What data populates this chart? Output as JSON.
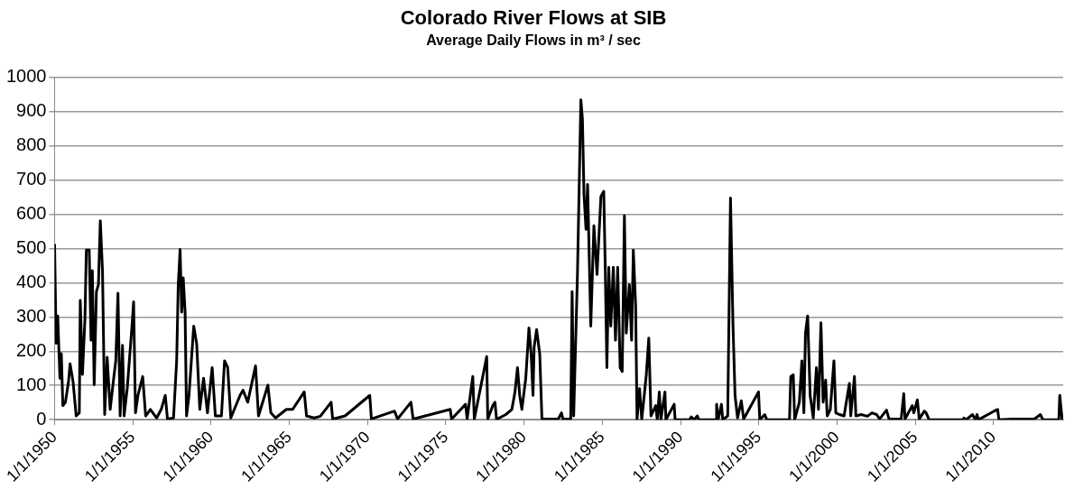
{
  "chart_data": {
    "type": "line",
    "title": "Colorado River Flows at SIB",
    "subtitle": "Average Daily Flows in m³ / sec",
    "xlim": [
      "1950-01-01",
      "2014-06-14"
    ],
    "xticks": [
      {
        "value": "1950-01-01",
        "label": "1/1/1950"
      },
      {
        "value": "1955-01-01",
        "label": "1/1/1955"
      },
      {
        "value": "1960-01-01",
        "label": "1/1/1960"
      },
      {
        "value": "1965-01-01",
        "label": "1/1/1965"
      },
      {
        "value": "1970-01-01",
        "label": "1/1/1970"
      },
      {
        "value": "1975-01-01",
        "label": "1/1/1975"
      },
      {
        "value": "1980-01-01",
        "label": "1/1/1980"
      },
      {
        "value": "1985-01-01",
        "label": "1/1/1985"
      },
      {
        "value": "1990-01-01",
        "label": "1/1/1990"
      },
      {
        "value": "1995-01-01",
        "label": "1/1/1995"
      },
      {
        "value": "2000-01-01",
        "label": "1/1/2000"
      },
      {
        "value": "2005-01-01",
        "label": "1/1/2005"
      },
      {
        "value": "2010-01-01",
        "label": "1/1/2010"
      }
    ],
    "ylim": [
      0,
      1000
    ],
    "yticks": [
      0,
      100,
      200,
      300,
      400,
      500,
      600,
      700,
      800,
      900,
      1000
    ],
    "grid": "y",
    "legend": false,
    "marker": "none",
    "line_style": "solid",
    "series": [
      {
        "color": "#000000",
        "x": [
          "1950-01-01",
          "1950-02-06",
          "1950-03-15",
          "1950-05-05",
          "1950-06-07",
          "1950-07-13",
          "1950-09-10",
          "1950-11-22",
          "1950-12-28",
          "1951-03-08",
          "1951-05-20",
          "1951-08-01",
          "1951-08-23",
          "1951-10-13",
          "1951-12-10",
          "1952-01-12",
          "1952-03-19",
          "1952-05-01",
          "1952-05-31",
          "1952-07-13",
          "1952-09-03",
          "1952-10-20",
          "1952-12-03",
          "1953-01-23",
          "1953-03-15",
          "1953-05-12",
          "1953-07-21",
          "1953-10-02",
          "1953-11-29",
          "1954-01-19",
          "1954-03-11",
          "1954-05-05",
          "1954-06-11",
          "1954-08-23",
          "1954-12-06",
          "1955-01-19",
          "1955-03-04",
          "1955-05-01",
          "1955-08-19",
          "1955-10-27",
          "1956-02-14",
          "1956-07-10",
          "1956-10-24",
          "1957-01-27",
          "1957-03-19",
          "1957-08-08",
          "1957-10-20",
          "1957-11-26",
          "1958-01-08",
          "1958-02-14",
          "1958-03-22",
          "1958-05-05",
          "1958-06-07",
          "1958-08-04",
          "1958-11-22",
          "1959-01-30",
          "1959-04-13",
          "1959-07-10",
          "1959-10-09",
          "1960-01-27",
          "1960-04-10",
          "1960-08-30",
          "1960-11-11",
          "1961-01-23",
          "1961-04-06",
          "1961-11-07",
          "1962-01-16",
          "1962-05-05",
          "1962-11-04",
          "1963-01-12",
          "1963-08-19",
          "1963-10-27",
          "1964-02-14",
          "1964-10-24",
          "1965-03-19",
          "1965-12-14",
          "1966-02-06",
          "1966-08-04",
          "1966-12-25",
          "1967-09-03",
          "1967-10-09",
          "1968-07-24",
          "1970-02-21",
          "1970-03-30",
          "1971-09-21",
          "1971-12-03",
          "1972-10-09",
          "1972-11-29",
          "1975-04-13",
          "1975-05-16",
          "1976-04-06",
          "1976-05-12",
          "1976-09-21",
          "1976-10-27",
          "1977-08-12",
          "1977-09-06",
          "1978-01-01",
          "1978-02-21",
          "1978-03-30",
          "1978-10-31",
          "1979-03-22",
          "1979-06-03",
          "1979-08-01",
          "1979-09-21",
          "1979-11-11",
          "1980-02-10",
          "1980-04-24",
          "1980-06-14",
          "1980-07-28",
          "1980-08-23",
          "1980-10-20",
          "1981-01-01",
          "1981-02-21",
          "1982-03-11",
          "1982-05-23",
          "1982-06-25",
          "1982-12-25",
          "1983-01-27",
          "1983-03-04",
          "1983-05-31",
          "1983-07-13",
          "1983-08-19",
          "1983-09-24",
          "1983-10-31",
          "1983-12-17",
          "1984-01-23",
          "1984-04-06",
          "1984-06-18",
          "1984-08-30",
          "1984-11-29",
          "1985-02-03",
          "1985-03-11",
          "1985-04-17",
          "1985-05-31",
          "1985-07-17",
          "1985-09-14",
          "1985-11-04",
          "1985-12-25",
          "1986-02-21",
          "1986-04-10",
          "1986-05-31",
          "1986-07-13",
          "1986-09-24",
          "1986-11-15",
          "1986-12-25",
          "1987-02-17",
          "1987-03-22",
          "1987-05-20",
          "1987-07-10",
          "1987-09-06",
          "1987-10-24",
          "1987-12-21",
          "1988-02-10",
          "1988-05-31",
          "1988-07-06",
          "1988-08-23",
          "1988-09-28",
          "1989-01-01",
          "1989-01-23",
          "1989-08-04",
          "1989-08-26",
          "1990-08-01",
          "1990-09-06",
          "1990-11-18",
          "1991-01-27",
          "1991-03-04",
          "1992-04-06",
          "1992-04-21",
          "1992-05-27",
          "1992-08-12",
          "1992-09-10",
          "1993-01-05",
          "1993-03-11",
          "1993-05-09",
          "1993-06-25",
          "1993-08-23",
          "1993-11-18",
          "1994-01-12",
          "1994-12-25",
          "1995-01-23",
          "1995-05-20",
          "1995-07-06",
          "1996-12-17",
          "1997-01-16",
          "1997-03-15",
          "1997-04-17",
          "1997-08-04",
          "1997-10-02",
          "1997-11-18",
          "1997-12-25",
          "1998-02-14",
          "1998-04-13",
          "1998-06-25",
          "1998-09-06",
          "1998-10-24",
          "1998-12-21",
          "1999-02-10",
          "1999-04-10",
          "1999-05-16",
          "1999-07-28",
          "1999-10-20",
          "1999-12-03",
          "2000-02-28",
          "2000-06-13",
          "2000-10-15",
          "2000-11-15",
          "2001-02-10",
          "2001-03-15",
          "2001-07-17",
          "2001-12-10",
          "2002-03-26",
          "2002-07-13",
          "2002-09-21",
          "2003-02-28",
          "2003-04-28",
          "2004-02-06",
          "2004-04-06",
          "2004-05-05",
          "2004-10-20",
          "2004-11-26",
          "2005-02-17",
          "2005-04-02",
          "2005-08-01",
          "2005-09-10",
          "2005-11-18",
          "2008-01-23",
          "2008-02-06",
          "2008-04-02",
          "2008-08-26",
          "2008-11-04",
          "2008-12-10",
          "2009-01-16",
          "2010-01-12",
          "2010-04-06",
          "2010-05-05",
          "2011-03-19",
          "2012-08-08",
          "2012-12-28",
          "2013-02-25",
          "2014-03-04",
          "2014-03-26",
          "2014-05-20"
        ],
        "values": [
          510,
          223,
          303,
          121,
          193,
          41,
          51,
          111,
          163,
          111,
          11,
          20,
          348,
          132,
          293,
          495,
          495,
          232,
          435,
          102,
          374,
          394,
          581,
          435,
          15,
          182,
          30,
          111,
          172,
          369,
          11,
          217,
          11,
          91,
          263,
          344,
          20,
          71,
          126,
          11,
          30,
          5,
          30,
          71,
          2,
          5,
          172,
          394,
          497,
          314,
          414,
          314,
          11,
          71,
          273,
          222,
          30,
          121,
          20,
          152,
          11,
          11,
          172,
          152,
          5,
          71,
          86,
          51,
          157,
          11,
          101,
          20,
          5,
          30,
          30,
          81,
          11,
          5,
          10,
          51,
          2,
          11,
          71,
          2,
          25,
          2,
          51,
          2,
          30,
          2,
          45,
          2,
          126,
          2,
          184,
          2,
          41,
          51,
          1,
          15,
          30,
          81,
          152,
          71,
          30,
          121,
          268,
          192,
          71,
          212,
          263,
          192,
          2,
          2,
          20,
          2,
          2,
          374,
          11,
          424,
          697,
          934,
          879,
          657,
          556,
          687,
          273,
          566,
          424,
          652,
          667,
          435,
          152,
          445,
          273,
          445,
          232,
          445,
          152,
          141,
          596,
          253,
          394,
          232,
          495,
          333,
          0,
          91,
          0,
          71,
          131,
          238,
          11,
          41,
          0,
          81,
          0,
          81,
          0,
          45,
          0,
          0,
          8,
          0,
          11,
          0,
          0,
          45,
          0,
          45,
          0,
          11,
          647,
          273,
          71,
          5,
          55,
          2,
          81,
          0,
          15,
          0,
          0,
          126,
          131,
          0,
          51,
          172,
          20,
          253,
          303,
          71,
          5,
          152,
          30,
          283,
          51,
          116,
          11,
          30,
          172,
          20,
          15,
          11,
          106,
          11,
          126,
          11,
          15,
          10,
          20,
          15,
          2,
          28,
          2,
          2,
          76,
          2,
          41,
          20,
          58,
          2,
          25,
          20,
          0,
          0,
          5,
          0,
          15,
          0,
          15,
          0,
          25,
          30,
          0,
          2,
          2,
          15,
          0,
          0,
          71,
          2
        ]
      }
    ]
  }
}
